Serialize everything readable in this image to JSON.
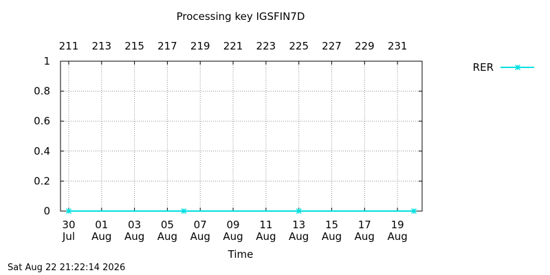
{
  "chart_data": {
    "type": "line",
    "title": "Processing key IGSFIN7D",
    "xlabel": "Time",
    "ylabel": "",
    "ylim": [
      0,
      1
    ],
    "xlim": [
      "2026-07-29T12:00",
      "2026-08-20T12:00"
    ],
    "yticks": [
      "0",
      "0.2",
      "0.4",
      "0.6",
      "0.8",
      "1"
    ],
    "bottom_ticks": [
      {
        "date": "2026-07-30",
        "day": "30",
        "month": "Jul"
      },
      {
        "date": "2026-08-01",
        "day": "01",
        "month": "Aug"
      },
      {
        "date": "2026-08-03",
        "day": "03",
        "month": "Aug"
      },
      {
        "date": "2026-08-05",
        "day": "05",
        "month": "Aug"
      },
      {
        "date": "2026-08-07",
        "day": "07",
        "month": "Aug"
      },
      {
        "date": "2026-08-09",
        "day": "09",
        "month": "Aug"
      },
      {
        "date": "2026-08-11",
        "day": "11",
        "month": "Aug"
      },
      {
        "date": "2026-08-13",
        "day": "13",
        "month": "Aug"
      },
      {
        "date": "2026-08-15",
        "day": "15",
        "month": "Aug"
      },
      {
        "date": "2026-08-17",
        "day": "17",
        "month": "Aug"
      },
      {
        "date": "2026-08-19",
        "day": "19",
        "month": "Aug"
      }
    ],
    "top_ticks": [
      {
        "date": "2026-07-30",
        "label": "211"
      },
      {
        "date": "2026-08-01",
        "label": "213"
      },
      {
        "date": "2026-08-03",
        "label": "215"
      },
      {
        "date": "2026-08-05",
        "label": "217"
      },
      {
        "date": "2026-08-07",
        "label": "219"
      },
      {
        "date": "2026-08-09",
        "label": "221"
      },
      {
        "date": "2026-08-11",
        "label": "223"
      },
      {
        "date": "2026-08-13",
        "label": "225"
      },
      {
        "date": "2026-08-15",
        "label": "227"
      },
      {
        "date": "2026-08-17",
        "label": "229"
      },
      {
        "date": "2026-08-19",
        "label": "231"
      }
    ],
    "grid": true,
    "legend_position": "top-right, outside plot",
    "series": [
      {
        "name": "RER",
        "color": "#00e0e0",
        "marker": "asterisk",
        "x": [
          "2026-07-30",
          "2026-08-06",
          "2026-08-13",
          "2026-08-20"
        ],
        "y": [
          0,
          0,
          0,
          0
        ]
      }
    ]
  },
  "footer": {
    "timestamp": "Sat Aug 22 21:22:14 2026"
  }
}
